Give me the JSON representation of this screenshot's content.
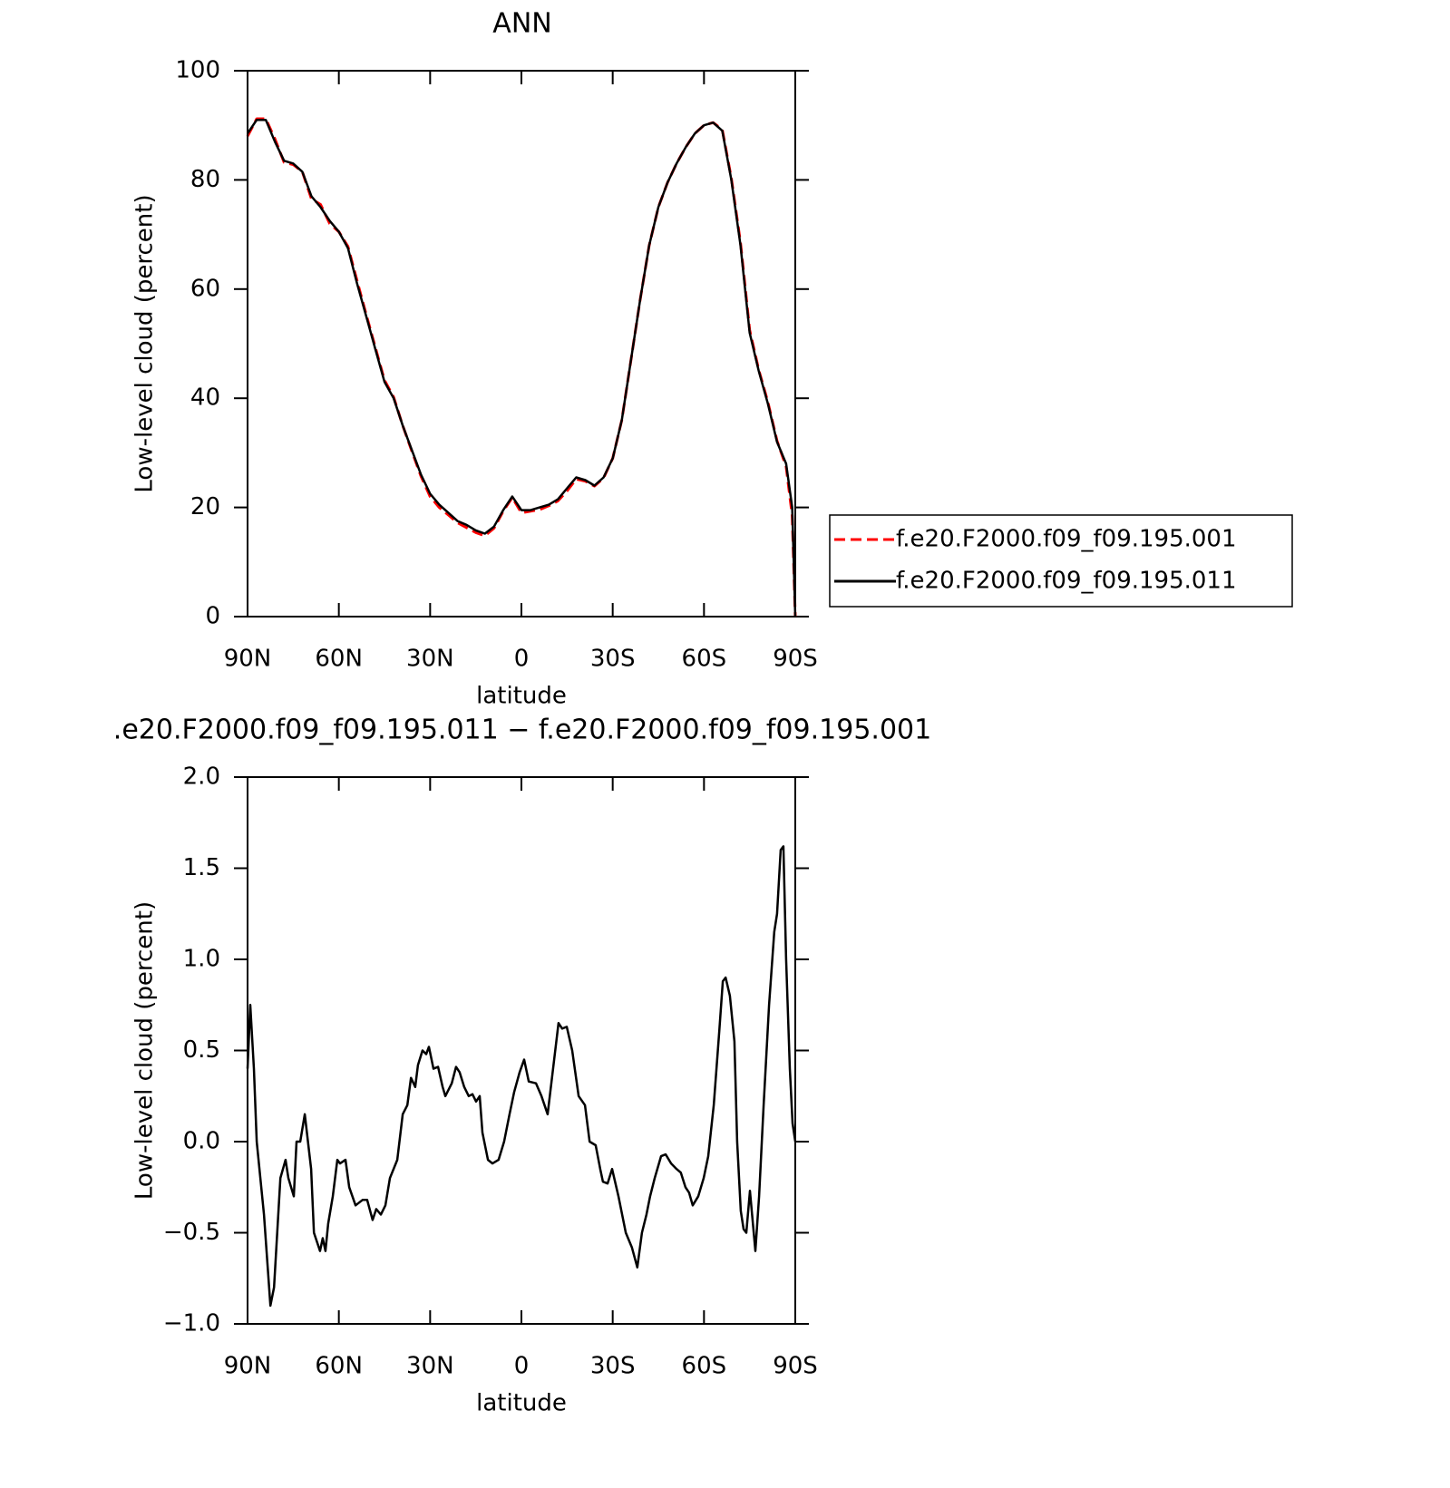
{
  "chart_data": [
    {
      "type": "line",
      "title": "ANN",
      "xlabel": "latitude",
      "ylabel": "Low-level cloud (percent)",
      "x": [
        90,
        87,
        84,
        81,
        78,
        75,
        72,
        69,
        66,
        63,
        60,
        57,
        54,
        51,
        48,
        45,
        42,
        39,
        36,
        33,
        30,
        27,
        24,
        21,
        18,
        15,
        12,
        9,
        6,
        3,
        0,
        -3,
        -6,
        -9,
        -12,
        -15,
        -18,
        -21,
        -24,
        -27,
        -30,
        -33,
        -36,
        -39,
        -42,
        -45,
        -48,
        -51,
        -54,
        -57,
        -60,
        -63,
        -66,
        -69,
        -72,
        -75,
        -78,
        -81,
        -84,
        -87,
        -89,
        -90
      ],
      "series": [
        {
          "name": "f.e20.F2000.f09_f09.195.001",
          "color": "#ff0000",
          "dashed": true,
          "values": [
            88,
            91.2,
            91.2,
            87.5,
            83.2,
            82.8,
            81.5,
            76.5,
            75.5,
            72,
            70.5,
            67.8,
            61.5,
            55.3,
            49.3,
            43.3,
            40.2,
            35,
            30.3,
            25.7,
            22,
            20,
            18.6,
            17.2,
            16.3,
            15.4,
            14.8,
            16.2,
            19.3,
            21.8,
            19,
            19.3,
            19.6,
            20.3,
            21.2,
            23,
            25.2,
            24.8,
            23.9,
            25.4,
            29,
            36,
            47,
            58,
            68,
            75,
            79.5,
            83,
            86,
            88.5,
            90,
            90.5,
            89.2,
            80.3,
            68.5,
            52.5,
            45.2,
            39.3,
            32.2,
            27.5,
            18.5,
            0
          ]
        },
        {
          "name": "f.e20.F2000.f09_f09.195.011",
          "color": "#000000",
          "dashed": false,
          "values": [
            88.5,
            91,
            91,
            87,
            83.5,
            83,
            81.5,
            77,
            75,
            72.5,
            70.5,
            67.5,
            61,
            55,
            49,
            43,
            40,
            35,
            30.5,
            26,
            22.5,
            20.5,
            19,
            17.5,
            16.8,
            15.8,
            15.2,
            16.5,
            19.5,
            22,
            19.5,
            19.5,
            20,
            20.5,
            21.5,
            23.5,
            25.5,
            25,
            24,
            25.5,
            29,
            36,
            47,
            58,
            68,
            75,
            79.5,
            83,
            86,
            88.5,
            90,
            90.5,
            89,
            80,
            68,
            52,
            45,
            39,
            32,
            28,
            20,
            0
          ]
        }
      ],
      "xlim": [
        90,
        -90
      ],
      "xticks": [
        {
          "value": 90,
          "label": "90N"
        },
        {
          "value": 60,
          "label": "60N"
        },
        {
          "value": 30,
          "label": "30N"
        },
        0,
        {
          "value": -30,
          "label": "30S"
        },
        {
          "value": -60,
          "label": "60S"
        },
        {
          "value": -90,
          "label": "90S"
        }
      ],
      "ylim": [
        0,
        100
      ],
      "yticks": [
        0,
        20,
        40,
        60,
        80,
        100
      ],
      "legend": "right"
    },
    {
      "type": "line",
      "title": ".e20.F2000.f09_f09.195.011 − f.e20.F2000.f09_f09.195.001",
      "xlabel": "latitude",
      "ylabel": "Low-level cloud (percent)",
      "x": [
        90,
        89.1,
        87.9,
        87.0,
        84.6,
        82.5,
        81.3,
        79.2,
        77.5,
        76.6,
        74.8,
        73.9,
        72.7,
        71.2,
        69.1,
        68.2,
        66.2,
        65.3,
        64.4,
        63.5,
        62.0,
        60.5,
        59.6,
        57.8,
        56.6,
        54.5,
        52.2,
        50.7,
        48.9,
        47.7,
        46.2,
        44.7,
        43.2,
        40.8,
        39.0,
        37.5,
        36.3,
        34.9,
        34.0,
        32.5,
        31.3,
        30.4,
        28.9,
        27.4,
        25.9,
        25.0,
        22.9,
        21.5,
        20.3,
        18.8,
        17.3,
        16.1,
        14.9,
        13.7,
        12.8,
        11.0,
        9.5,
        7.5,
        5.7,
        3.9,
        2.4,
        0.6,
        -0.9,
        -2.4,
        -4.8,
        -6.6,
        -8.6,
        -10.4,
        -12.2,
        -13.4,
        -14.9,
        -16.7,
        -18.8,
        -20.9,
        -22.4,
        -24.4,
        -25.9,
        -26.8,
        -28.3,
        -29.8,
        -31.9,
        -34.3,
        -36.3,
        -38.1,
        -39.6,
        -41.1,
        -42.3,
        -43.8,
        -45.9,
        -47.4,
        -49.2,
        -51.0,
        -52.4,
        -53.9,
        -55.1,
        -56.3,
        -58.1,
        -59.9,
        -61.4,
        -63.2,
        -65.0,
        -66.2,
        -67.1,
        -68.5,
        -70.0,
        -70.9,
        -72.1,
        -73.0,
        -73.9,
        -75.1,
        -76.9,
        -78.1,
        -79.6,
        -81.4,
        -83.1,
        -84.0,
        -85.2,
        -86.1,
        -87.0,
        -88.2,
        -89.1,
        -90
      ],
      "series": [
        {
          "color": "#000000",
          "dashed": false,
          "values": [
            0.4,
            0.75,
            0.4,
            0.0,
            -0.4,
            -0.9,
            -0.8,
            -0.2,
            -0.1,
            -0.2,
            -0.3,
            0.0,
            0.0,
            0.15,
            -0.15,
            -0.5,
            -0.6,
            -0.53,
            -0.6,
            -0.45,
            -0.3,
            -0.1,
            -0.12,
            -0.1,
            -0.25,
            -0.35,
            -0.32,
            -0.32,
            -0.43,
            -0.37,
            -0.4,
            -0.35,
            -0.2,
            -0.1,
            0.15,
            0.2,
            0.35,
            0.3,
            0.42,
            0.5,
            0.48,
            0.52,
            0.4,
            0.41,
            0.3,
            0.25,
            0.32,
            0.41,
            0.38,
            0.3,
            0.25,
            0.26,
            0.22,
            0.25,
            0.05,
            -0.1,
            -0.12,
            -0.1,
            0.0,
            0.15,
            0.27,
            0.38,
            0.45,
            0.33,
            0.32,
            0.25,
            0.15,
            0.4,
            0.65,
            0.62,
            0.63,
            0.5,
            0.25,
            0.2,
            0.0,
            -0.02,
            -0.15,
            -0.22,
            -0.23,
            -0.15,
            -0.3,
            -0.5,
            -0.58,
            -0.69,
            -0.5,
            -0.4,
            -0.3,
            -0.2,
            -0.08,
            -0.07,
            -0.12,
            -0.15,
            -0.17,
            -0.25,
            -0.28,
            -0.35,
            -0.3,
            -0.2,
            -0.08,
            0.2,
            0.6,
            0.88,
            0.9,
            0.8,
            0.55,
            0.0,
            -0.38,
            -0.48,
            -0.5,
            -0.27,
            -0.6,
            -0.3,
            0.2,
            0.75,
            1.15,
            1.25,
            1.6,
            1.62,
            1.0,
            0.4,
            0.1,
            0.0
          ]
        }
      ],
      "xlim": [
        90,
        -90
      ],
      "xticks": [
        {
          "value": 90,
          "label": "90N"
        },
        {
          "value": 60,
          "label": "60N"
        },
        {
          "value": 30,
          "label": "30N"
        },
        0,
        {
          "value": -30,
          "label": "30S"
        },
        {
          "value": -60,
          "label": "60S"
        },
        {
          "value": -90,
          "label": "90S"
        }
      ],
      "ylim": [
        -1,
        2
      ],
      "yticks": [
        {
          "value": -1,
          "label": "−1.0"
        },
        {
          "value": -0.5,
          "label": "−0.5"
        },
        {
          "value": 0,
          "label": "0.0"
        },
        {
          "value": 0.5,
          "label": "0.5"
        },
        {
          "value": 1,
          "label": "1.0"
        },
        {
          "value": 1.5,
          "label": "1.5"
        },
        {
          "value": 2,
          "label": "2.0"
        }
      ]
    }
  ]
}
